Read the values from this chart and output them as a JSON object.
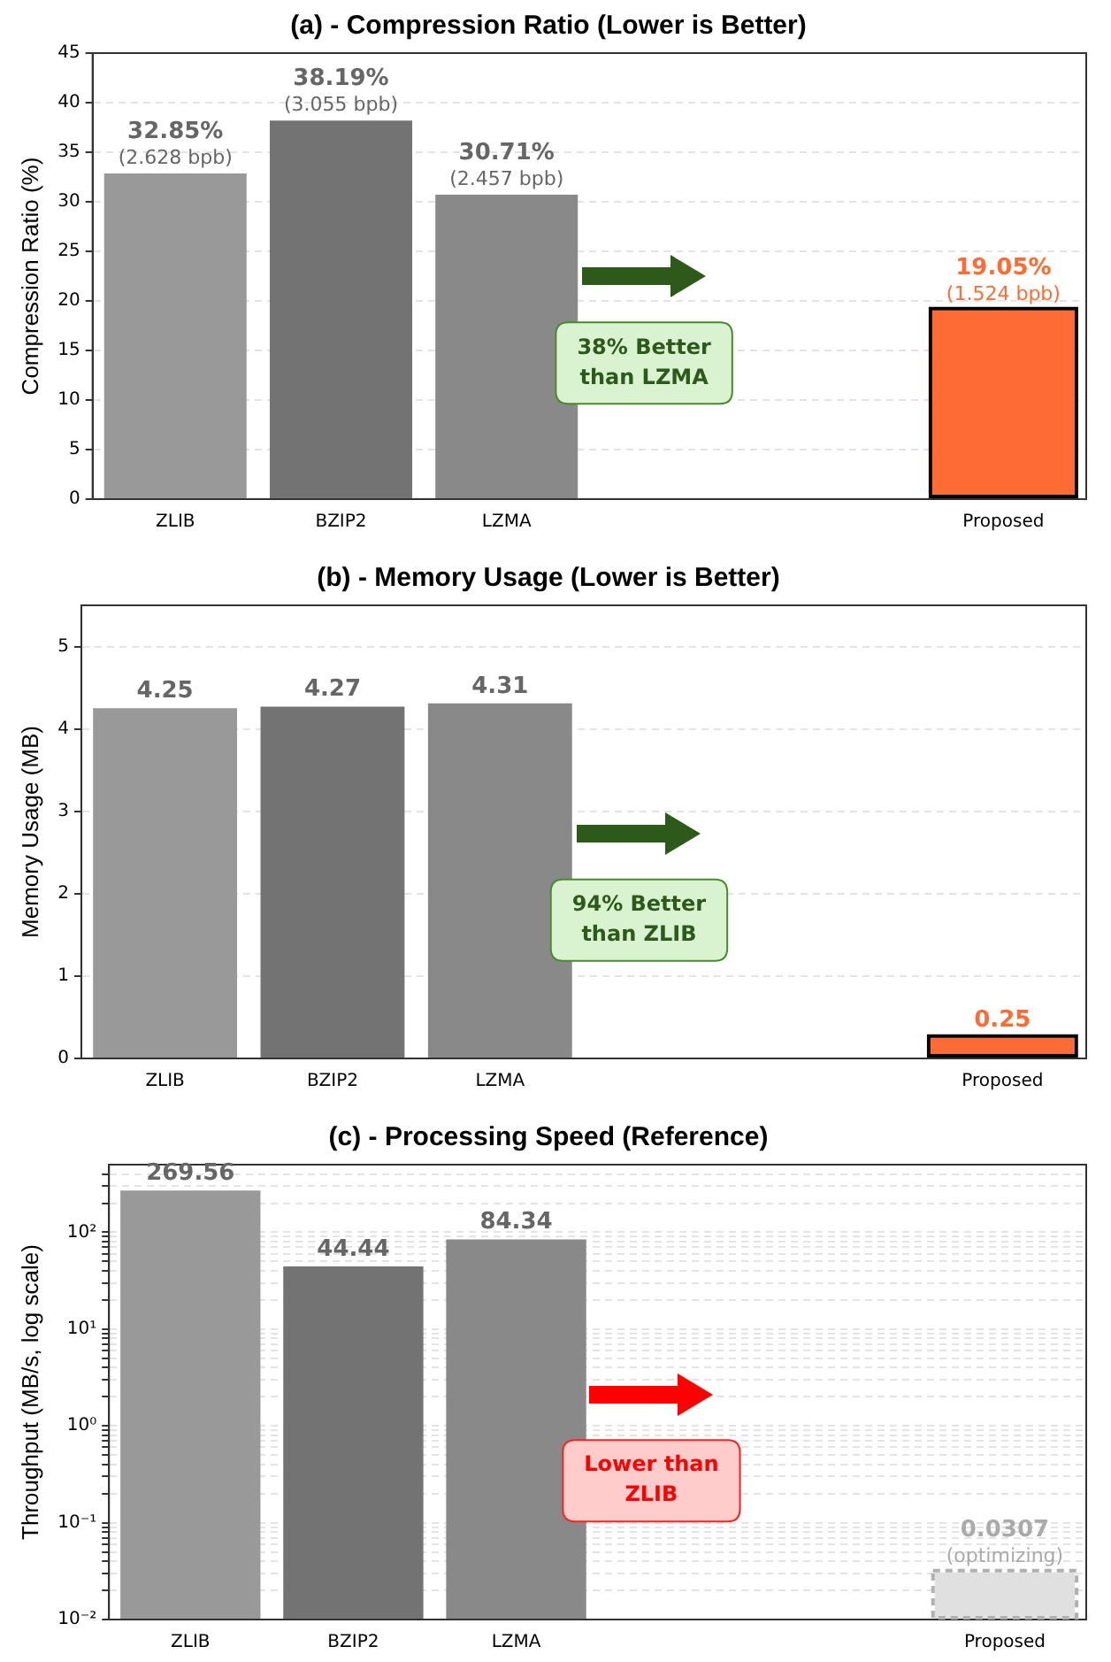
{
  "chart_data": [
    {
      "type": "bar",
      "title": "(a) - Compression Ratio (Lower is Better)",
      "ylabel": "Compression Ratio (%)",
      "categories": [
        "ZLIB",
        "BZIP2",
        "LZMA",
        null,
        null,
        "Proposed"
      ],
      "values": [
        32.85,
        38.19,
        30.71,
        null,
        null,
        19.05
      ],
      "colors": [
        "#999999",
        "#737373",
        "#898989",
        "#ffffff",
        "#ffffff",
        "#ff6b35"
      ],
      "value_labels": [
        "32.85%\n(2.628 bpb)",
        "38.19%\n(3.055 bpb)",
        "30.71%\n(2.457 bpb)",
        null,
        null,
        "19.05%\n(1.524 bpb)"
      ],
      "ylim": [
        0,
        45
      ],
      "yticks": [
        0,
        5,
        10,
        15,
        20,
        25,
        30,
        35,
        40,
        45
      ],
      "grid": "y",
      "legend": false,
      "annotations": [
        "38% Better than LZMA"
      ]
    },
    {
      "type": "bar",
      "title": "(b) - Memory Usage (Lower is Better)",
      "ylabel": "Memory Usage (MB)",
      "categories": [
        "ZLIB",
        "BZIP2",
        "LZMA",
        null,
        null,
        "Proposed"
      ],
      "values": [
        4.25,
        4.27,
        4.31,
        null,
        null,
        0.25
      ],
      "colors": [
        "#999999",
        "#737373",
        "#898989",
        "#ffffff",
        "#ffffff",
        "#ff6b35"
      ],
      "data_labels": true,
      "ylim": [
        0,
        5.5
      ],
      "yticks": [
        0,
        1,
        2,
        3,
        4,
        5
      ],
      "grid": "y",
      "legend": false,
      "annotations": [
        "94% Better than ZLIB"
      ]
    },
    {
      "type": "bar",
      "title": "(c) - Processing Speed (Reference)",
      "ylabel": "Throughput (MB/s, log scale)",
      "categories": [
        "ZLIB",
        "BZIP2",
        "LZMA",
        null,
        null,
        "Proposed"
      ],
      "values": [
        269.56,
        44.44,
        84.34,
        null,
        null,
        0.0307
      ],
      "colors": [
        "#999999",
        "#737373",
        "#898989",
        "#ffffff",
        "#ffffff",
        "#e0e0e0"
      ],
      "value_labels": [
        "269.56",
        "44.44",
        "84.34",
        null,
        null,
        "0.0307\n(optimizing)"
      ],
      "log": "y",
      "ylim": [
        0.01,
        500
      ],
      "yticks": [
        {
          "value": 0.01,
          "label": "10⁻²"
        },
        {
          "value": 0.02,
          "label": null
        },
        {
          "value": 0.03,
          "label": null
        },
        {
          "value": 0.04,
          "label": null
        },
        {
          "value": 0.05,
          "label": null
        },
        {
          "value": 0.06,
          "label": null
        },
        {
          "value": 0.07,
          "label": null
        },
        {
          "value": 0.08,
          "label": null
        },
        {
          "value": 0.09,
          "label": null
        },
        {
          "value": 0.1,
          "label": "10⁻¹"
        },
        {
          "value": 0.2,
          "label": null
        },
        {
          "value": 0.3,
          "label": null
        },
        {
          "value": 0.4,
          "label": null
        },
        {
          "value": 0.5,
          "label": null
        },
        {
          "value": 0.6,
          "label": null
        },
        {
          "value": 0.7,
          "label": null
        },
        {
          "value": 0.8,
          "label": null
        },
        {
          "value": 0.9,
          "label": null
        },
        {
          "value": 1,
          "label": "10⁰"
        },
        {
          "value": 2,
          "label": null
        },
        {
          "value": 3,
          "label": null
        },
        {
          "value": 4,
          "label": null
        },
        {
          "value": 5,
          "label": null
        },
        {
          "value": 6,
          "label": null
        },
        {
          "value": 7,
          "label": null
        },
        {
          "value": 8,
          "label": null
        },
        {
          "value": 9,
          "label": null
        },
        {
          "value": 10,
          "label": "10¹"
        },
        {
          "value": 20,
          "label": null
        },
        {
          "value": 30,
          "label": null
        },
        {
          "value": 40,
          "label": null
        },
        {
          "value": 50,
          "label": null
        },
        {
          "value": 60,
          "label": null
        },
        {
          "value": 70,
          "label": null
        },
        {
          "value": 80,
          "label": null
        },
        {
          "value": 90,
          "label": null
        },
        {
          "value": 100,
          "label": "10²"
        },
        {
          "value": 200,
          "label": null
        },
        {
          "value": 300,
          "label": null
        },
        {
          "value": 400,
          "label": null
        }
      ],
      "grid": "y",
      "legend": false,
      "annotations": [
        "Lower than ZLIB"
      ]
    }
  ]
}
